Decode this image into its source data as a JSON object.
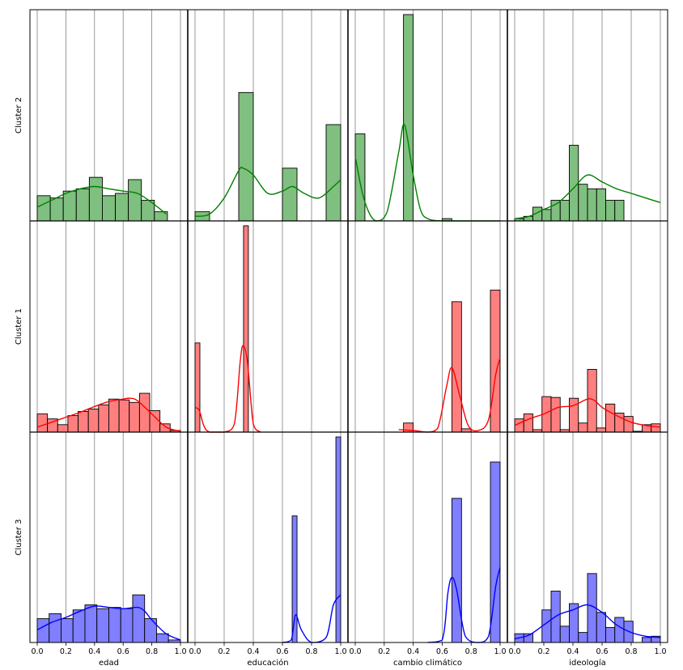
{
  "colors": {
    "Cluster 2": "#008000",
    "Cluster 1": "#ff0000",
    "Cluster 3": "#0000ff"
  },
  "chart_data": {
    "type": "histogram-grid",
    "grid": true,
    "rows": [
      "Cluster 2",
      "Cluster 1",
      "Cluster 3"
    ],
    "columns": [
      "edad",
      "educación",
      "cambio climático",
      "ideología"
    ],
    "xlim": [
      0,
      1
    ],
    "xticks": [
      "0.0",
      "0.2",
      "0.4",
      "0.6",
      "0.8",
      "1.0"
    ],
    "panels": [
      {
        "row": "Cluster 2",
        "column": "edad",
        "bin_start": 0.0,
        "bin_width": 0.0909,
        "counts": [
          11,
          10,
          13,
          14,
          19,
          11,
          12,
          18,
          9,
          4
        ],
        "kde": [
          [
            0,
            6
          ],
          [
            0.1,
            9
          ],
          [
            0.2,
            12
          ],
          [
            0.3,
            14
          ],
          [
            0.4,
            15
          ],
          [
            0.5,
            14
          ],
          [
            0.6,
            13
          ],
          [
            0.7,
            12
          ],
          [
            0.8,
            8
          ],
          [
            0.9,
            3
          ]
        ]
      },
      {
        "row": "Cluster 2",
        "column": "educación",
        "bin_start": 0.0,
        "bin_width": 0.1,
        "bars": [
          [
            0.0,
            4
          ],
          [
            0.3,
            56
          ],
          [
            0.6,
            23
          ],
          [
            0.9,
            42
          ]
        ],
        "kde": [
          [
            0,
            2
          ],
          [
            0.1,
            3
          ],
          [
            0.2,
            10
          ],
          [
            0.3,
            22
          ],
          [
            0.33,
            23
          ],
          [
            0.4,
            20
          ],
          [
            0.5,
            12
          ],
          [
            0.6,
            13
          ],
          [
            0.67,
            15
          ],
          [
            0.75,
            12
          ],
          [
            0.85,
            10
          ],
          [
            0.95,
            15
          ],
          [
            1.0,
            18
          ]
        ]
      },
      {
        "row": "Cluster 2",
        "column": "cambio climático",
        "bin_start": 0.0,
        "bin_width": 0.0667,
        "bars": [
          [
            0.0,
            38
          ],
          [
            0.333,
            90
          ],
          [
            0.6,
            1
          ]
        ],
        "kde": [
          [
            0,
            28
          ],
          [
            0.05,
            12
          ],
          [
            0.1,
            3
          ],
          [
            0.15,
            0
          ],
          [
            0.22,
            4
          ],
          [
            0.3,
            30
          ],
          [
            0.34,
            42
          ],
          [
            0.4,
            20
          ],
          [
            0.45,
            5
          ],
          [
            0.5,
            1
          ],
          [
            0.6,
            0
          ],
          [
            0.8,
            0
          ],
          [
            1.0,
            0
          ]
        ]
      },
      {
        "row": "Cluster 2",
        "column": "ideología",
        "bin_start": 0.0,
        "bin_width": 0.0625,
        "counts": [
          1,
          2,
          6,
          5,
          9,
          9,
          33,
          16,
          14,
          14,
          9,
          9
        ],
        "kde": [
          [
            0,
            1
          ],
          [
            0.1,
            2
          ],
          [
            0.2,
            5
          ],
          [
            0.3,
            8
          ],
          [
            0.4,
            14
          ],
          [
            0.5,
            20
          ],
          [
            0.6,
            17
          ],
          [
            0.7,
            14
          ],
          [
            0.8,
            12
          ],
          [
            0.9,
            10
          ],
          [
            1.0,
            8
          ]
        ]
      },
      {
        "row": "Cluster 1",
        "column": "edad",
        "bin_start": 0.0,
        "bin_width": 0.0714,
        "counts": [
          22,
          16,
          9,
          20,
          25,
          28,
          33,
          40,
          39,
          36,
          47,
          26,
          10,
          2
        ],
        "kde": [
          [
            0,
            6
          ],
          [
            0.1,
            12
          ],
          [
            0.2,
            18
          ],
          [
            0.3,
            24
          ],
          [
            0.4,
            31
          ],
          [
            0.5,
            37
          ],
          [
            0.6,
            40
          ],
          [
            0.65,
            41
          ],
          [
            0.7,
            38
          ],
          [
            0.8,
            22
          ],
          [
            0.9,
            6
          ],
          [
            1.0,
            1
          ]
        ]
      },
      {
        "row": "Cluster 1",
        "column": "educación",
        "bin_start": 0.0,
        "bin_width": 0.0333,
        "bars": [
          [
            0.0,
            108
          ],
          [
            0.333,
            250
          ]
        ],
        "kde": [
          [
            0,
            30
          ],
          [
            0.03,
            26
          ],
          [
            0.06,
            8
          ],
          [
            0.1,
            0
          ],
          [
            0.2,
            0
          ],
          [
            0.27,
            10
          ],
          [
            0.31,
            85
          ],
          [
            0.33,
            105
          ],
          [
            0.36,
            85
          ],
          [
            0.4,
            10
          ],
          [
            0.45,
            0
          ]
        ]
      },
      {
        "row": "Cluster 1",
        "column": "cambio climático",
        "bin_start": 0.0,
        "bin_width": 0.0667,
        "bars": [
          [
            0.333,
            11
          ],
          [
            0.667,
            158
          ],
          [
            0.733,
            4
          ],
          [
            0.933,
            172
          ]
        ],
        "kde": [
          [
            0.3,
            3
          ],
          [
            0.4,
            2
          ],
          [
            0.5,
            0
          ],
          [
            0.57,
            5
          ],
          [
            0.63,
            55
          ],
          [
            0.667,
            78
          ],
          [
            0.72,
            45
          ],
          [
            0.78,
            8
          ],
          [
            0.85,
            2
          ],
          [
            0.92,
            15
          ],
          [
            0.97,
            70
          ],
          [
            1.0,
            90
          ]
        ]
      },
      {
        "row": "Cluster 1",
        "column": "ideología",
        "bin_start": 0.0,
        "bin_width": 0.0625,
        "counts": [
          16,
          22,
          3,
          43,
          42,
          3,
          41,
          11,
          76,
          5,
          34,
          23,
          19,
          1,
          9,
          10
        ],
        "kde": [
          [
            0,
            8
          ],
          [
            0.1,
            16
          ],
          [
            0.2,
            22
          ],
          [
            0.3,
            30
          ],
          [
            0.4,
            32
          ],
          [
            0.5,
            40
          ],
          [
            0.55,
            38
          ],
          [
            0.6,
            30
          ],
          [
            0.7,
            20
          ],
          [
            0.8,
            12
          ],
          [
            0.9,
            8
          ],
          [
            1.0,
            6
          ]
        ]
      },
      {
        "row": "Cluster 3",
        "column": "edad",
        "bin_start": 0.0,
        "bin_width": 0.0833,
        "counts": [
          19,
          23,
          19,
          26,
          30,
          27,
          28,
          27,
          38,
          19,
          7,
          2
        ],
        "kde": [
          [
            0,
            10
          ],
          [
            0.1,
            16
          ],
          [
            0.2,
            20
          ],
          [
            0.3,
            25
          ],
          [
            0.4,
            29
          ],
          [
            0.5,
            28
          ],
          [
            0.6,
            27
          ],
          [
            0.7,
            28
          ],
          [
            0.75,
            25
          ],
          [
            0.8,
            18
          ],
          [
            0.9,
            7
          ],
          [
            1.0,
            2
          ]
        ]
      },
      {
        "row": "Cluster 3",
        "column": "educación",
        "bin_start": 0.0,
        "bin_width": 0.0333,
        "bars": [
          [
            0.667,
            101
          ],
          [
            0.967,
            164
          ]
        ],
        "kde": [
          [
            0.6,
            0
          ],
          [
            0.66,
            2
          ],
          [
            0.69,
            22
          ],
          [
            0.73,
            10
          ],
          [
            0.8,
            0
          ],
          [
            0.9,
            4
          ],
          [
            0.95,
            30
          ],
          [
            1.0,
            38
          ]
        ]
      },
      {
        "row": "Cluster 3",
        "column": "cambio climático",
        "bin_start": 0.0,
        "bin_width": 0.0667,
        "bars": [
          [
            0.667,
            115
          ],
          [
            0.933,
            144
          ]
        ],
        "kde": [
          [
            0.5,
            0
          ],
          [
            0.6,
            2
          ],
          [
            0.64,
            40
          ],
          [
            0.667,
            52
          ],
          [
            0.7,
            42
          ],
          [
            0.76,
            5
          ],
          [
            0.85,
            0
          ],
          [
            0.92,
            5
          ],
          [
            0.97,
            45
          ],
          [
            1.0,
            60
          ]
        ]
      },
      {
        "row": "Cluster 3",
        "column": "ideología",
        "bin_start": 0.0,
        "bin_width": 0.0625,
        "counts": [
          7,
          7,
          0,
          26,
          41,
          13,
          31,
          8,
          55,
          24,
          12,
          20,
          17,
          0,
          4,
          5
        ],
        "kde": [
          [
            0,
            3
          ],
          [
            0.1,
            6
          ],
          [
            0.2,
            14
          ],
          [
            0.3,
            22
          ],
          [
            0.4,
            26
          ],
          [
            0.5,
            30
          ],
          [
            0.6,
            24
          ],
          [
            0.7,
            14
          ],
          [
            0.8,
            8
          ],
          [
            0.9,
            5
          ],
          [
            1.0,
            4
          ]
        ]
      }
    ]
  }
}
